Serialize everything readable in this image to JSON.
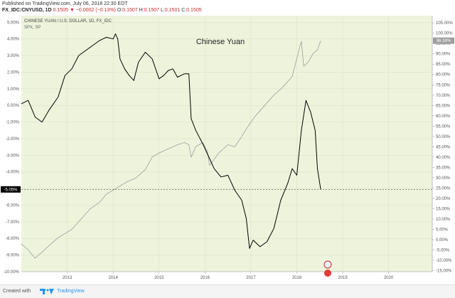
{
  "header": {
    "published": "Published on TradingView.com, July 06, 2018 22:30 EDT",
    "symbol": "FX_IDC:CNYUSD, 1D",
    "last": "0.1505",
    "change": "−0.0002 (−0.13%)",
    "open_label": "O:",
    "open": "0.1507",
    "high_label": "H:",
    "high": "0.1507",
    "low_label": "L:",
    "low": "0.1501",
    "close_label": "C:",
    "close": "0.1505"
  },
  "footer": {
    "created_with": "Created with",
    "brand": "TradingView"
  },
  "chart_data": {
    "type": "line",
    "title": "Chinese Yuan",
    "background": "#eef4dc",
    "grid": true,
    "legend": [
      {
        "name": "CHINESE YUAN / U.S. DOLLAR, 1D, FX_IDC",
        "color": "#000000"
      },
      {
        "name": "SPX, SP",
        "color": "#9e9e9e"
      }
    ],
    "x_ticks": [
      "2013",
      "2014",
      "2015",
      "2016",
      "2017",
      "2018",
      "2019",
      "2020"
    ],
    "y_left": {
      "ticks": [
        "5.00%",
        "4.00%",
        "3.00%",
        "2.00%",
        "1.00%",
        "0.00%",
        "-1.00%",
        "-2.00%",
        "-3.00%",
        "-4.00%",
        "-5.00%",
        "-6.00%",
        "-7.00%",
        "-8.00%",
        "-9.00%",
        "-10.00%"
      ],
      "ylim": [
        -10,
        5.4
      ]
    },
    "y_right": {
      "ticks": [
        "105.00%",
        "100.00%",
        "95.00%",
        "90.00%",
        "85.00%",
        "80.00%",
        "75.00%",
        "70.00%",
        "65.00%",
        "60.00%",
        "55.00%",
        "50.00%",
        "45.00%",
        "40.00%",
        "35.00%",
        "30.00%",
        "25.00%",
        "20.00%",
        "15.00%",
        "10.00%",
        "5.00%",
        "0.00%",
        "-5.00%",
        "-10.00%",
        "-15.00%"
      ],
      "ylim": [
        -15.5,
        108.5
      ]
    },
    "badges": {
      "left_value": "-5.05%",
      "right_value": "96.38%"
    },
    "series": [
      {
        "name": "CHINESE YUAN / U.S. DOLLAR, 1D, FX_IDC",
        "axis": "left",
        "color": "#000000",
        "x": [
          2012.0,
          2012.15,
          2012.3,
          2012.45,
          2012.6,
          2012.8,
          2012.95,
          2013.1,
          2013.25,
          2013.4,
          2013.55,
          2013.7,
          2013.85,
          2014.0,
          2014.05,
          2014.1,
          2014.15,
          2014.25,
          2014.35,
          2014.45,
          2014.55,
          2014.7,
          2014.85,
          2014.95,
          2015.0,
          2015.1,
          2015.2,
          2015.3,
          2015.4,
          2015.55,
          2015.65,
          2015.7,
          2015.8,
          2015.95,
          2016.1,
          2016.2,
          2016.35,
          2016.5,
          2016.65,
          2016.8,
          2016.9,
          2016.97,
          2017.05,
          2017.2,
          2017.35,
          2017.5,
          2017.65,
          2017.8,
          2017.9,
          2018.0,
          2018.1,
          2018.2,
          2018.3,
          2018.4,
          2018.45,
          2018.52
        ],
        "values": [
          0.1,
          0.3,
          -0.7,
          -1.0,
          -0.3,
          0.5,
          1.8,
          2.2,
          3.0,
          3.3,
          3.6,
          3.9,
          4.1,
          4.0,
          4.3,
          4.0,
          2.8,
          2.2,
          1.8,
          1.5,
          2.6,
          3.2,
          2.8,
          2.0,
          1.6,
          1.8,
          2.1,
          2.2,
          1.7,
          1.9,
          1.9,
          -0.8,
          -1.5,
          -2.3,
          -3.2,
          -3.8,
          -4.3,
          -4.2,
          -5.1,
          -5.7,
          -6.8,
          -8.6,
          -8.1,
          -8.5,
          -8.2,
          -7.4,
          -5.7,
          -4.7,
          -3.8,
          -4.2,
          -1.5,
          0.3,
          -0.4,
          -1.5,
          -3.8,
          -5.05
        ]
      },
      {
        "name": "SPX, SP",
        "axis": "right",
        "color": "#9e9e9e",
        "x": [
          2012.0,
          2012.15,
          2012.3,
          2012.45,
          2012.6,
          2012.8,
          2012.95,
          2013.1,
          2013.3,
          2013.5,
          2013.7,
          2013.85,
          2014.0,
          2014.15,
          2014.3,
          2014.5,
          2014.7,
          2014.85,
          2015.0,
          2015.2,
          2015.4,
          2015.55,
          2015.65,
          2015.7,
          2015.8,
          2015.95,
          2016.05,
          2016.1,
          2016.3,
          2016.5,
          2016.65,
          2016.8,
          2016.97,
          2017.1,
          2017.3,
          2017.5,
          2017.7,
          2017.9,
          2018.05,
          2018.1,
          2018.15,
          2018.25,
          2018.35,
          2018.45,
          2018.52
        ],
        "values": [
          -2,
          -5,
          -9,
          -6,
          -3,
          1,
          3,
          5,
          10,
          15,
          18,
          22,
          24,
          26,
          28,
          30,
          34,
          40,
          42,
          44,
          46,
          47,
          46,
          40,
          45,
          47,
          43,
          36,
          42,
          46,
          45,
          50,
          56,
          60,
          65,
          70,
          74,
          79,
          92,
          96,
          84,
          86,
          90,
          92,
          96.38
        ]
      }
    ]
  }
}
